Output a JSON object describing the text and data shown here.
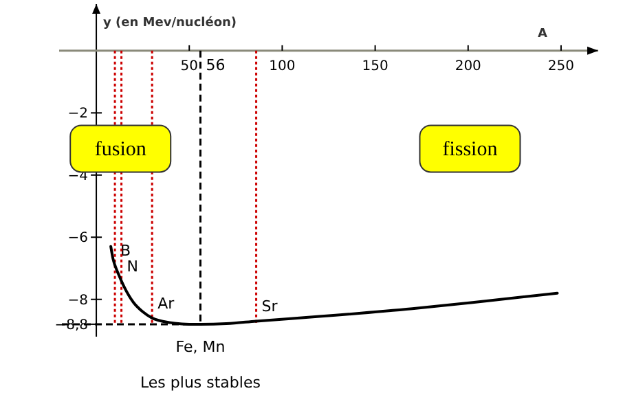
{
  "chart_data": {
    "type": "line",
    "xlabel": "A",
    "ylabel": "y (en Mev/nucléon)",
    "xlim": [
      -20,
      270
    ],
    "ylim": [
      -9.2,
      1.5
    ],
    "xticks": [
      50,
      100,
      150,
      200,
      250
    ],
    "yticks": [
      {
        "value": -2,
        "label": "−2"
      },
      {
        "value": -4,
        "label": "−4"
      },
      {
        "value": -6,
        "label": "−6"
      },
      {
        "value": -8,
        "label": "−8"
      },
      {
        "value": -8.8,
        "label": "−8,8"
      }
    ],
    "series": [
      {
        "color": "#000000",
        "x": [
          7.8,
          9,
          10,
          12,
          15,
          20,
          25,
          30,
          40,
          50,
          56,
          70,
          86,
          120,
          170,
          210,
          248
        ],
        "values": [
          -6.3,
          -6.7,
          -6.9,
          -7.2,
          -7.6,
          -8.1,
          -8.4,
          -8.6,
          -8.75,
          -8.8,
          -8.8,
          -8.78,
          -8.7,
          -8.55,
          -8.3,
          -8.05,
          -7.8
        ]
      }
    ],
    "ref_lines": [
      {
        "axis": "x",
        "value": 10,
        "label": "B",
        "color": "#cc0000",
        "line_style": "dotted"
      },
      {
        "axis": "x",
        "value": 13.5,
        "label": "N",
        "color": "#cc0000",
        "line_style": "dotted"
      },
      {
        "axis": "x",
        "value": 30,
        "label": "Ar",
        "color": "#cc0000",
        "line_style": "dotted"
      },
      {
        "axis": "x",
        "value": 86,
        "label": "Sr",
        "color": "#cc0000",
        "line_style": "dotted"
      },
      {
        "axis": "x",
        "value": 56,
        "label": "56",
        "color": "#000000",
        "line_style": "dashed"
      },
      {
        "axis": "y",
        "value": -8.8,
        "color": "#000000",
        "line_style": "dashed"
      }
    ],
    "annotations": [
      "fusion",
      "fission",
      "Les plus stables",
      {
        "text": "Fe, Mn",
        "x": 56,
        "y": -8.8
      }
    ],
    "grid": false,
    "marker": "none",
    "line_style": "solid"
  }
}
